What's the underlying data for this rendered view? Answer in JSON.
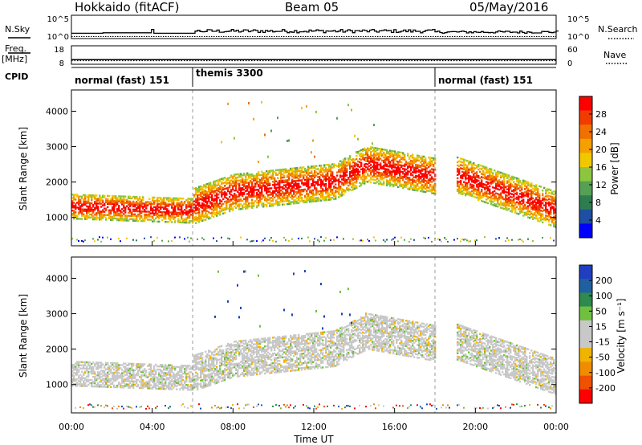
{
  "header": {
    "station": "Hokkaido (fitACF)",
    "beam": "Beam 05",
    "date": "05/May/2016"
  },
  "left_labels": {
    "nsky": "N.Sky",
    "freq": "Freq.",
    "freq_unit": "[MHz]",
    "cpid": "CPID"
  },
  "right_labels": {
    "nsearch": "N.Search",
    "nave": "Nave"
  },
  "cpid_segments": [
    {
      "label": "normal (fast) 151",
      "start_h": 0,
      "end_h": 6
    },
    {
      "label": "themis 3300",
      "start_h": 6,
      "end_h": 18
    },
    {
      "label": "normal (fast) 151",
      "start_h": 18,
      "end_h": 24
    }
  ],
  "colors": {
    "power_scale": [
      "#0000ff",
      "#1f4fa0",
      "#2e7d4f",
      "#55a055",
      "#8cc63f",
      "#f0c800",
      "#f5a000",
      "#f07000",
      "#f03c00",
      "#ff0000"
    ],
    "velocity_scale": [
      "#1f3fc0",
      "#2060a0",
      "#2e8a4e",
      "#70c040",
      "#c8c8c8",
      "#c8c8c8",
      "#f0b400",
      "#f08c00",
      "#f05000",
      "#ff0000"
    ],
    "gray": "#c8c8c8"
  },
  "chart_data": [
    {
      "type": "line",
      "name": "noise-panel",
      "y_left_ticks": [
        "10^5",
        "10^0"
      ],
      "y_right_ticks": [
        "10^5",
        "10^0"
      ],
      "x_range_h": [
        0,
        24
      ]
    },
    {
      "type": "line",
      "name": "frequency-panel",
      "y_left_ticks": [
        "18",
        "8"
      ],
      "y_right_ticks": [
        "60",
        "0"
      ],
      "frequency_mhz": 10.5,
      "nave": 12
    },
    {
      "type": "heatmap",
      "name": "power-panel",
      "xlabel": "",
      "ylabel": "Slant Range [km]",
      "xlim_h": [
        0,
        24
      ],
      "ylim_km": [
        200,
        4600
      ],
      "yticks": [
        1000,
        2000,
        3000,
        4000
      ],
      "colorbar_label": "Power [dB]",
      "colorbar_ticks": [
        "4",
        "8",
        "12",
        "16",
        "20",
        "24",
        "28"
      ],
      "colorbar_range": [
        0,
        32
      ]
    },
    {
      "type": "heatmap",
      "name": "velocity-panel",
      "xlabel": "Time UT",
      "ylabel": "Slant Range [km]",
      "xlim_h": [
        0,
        24
      ],
      "ylim_km": [
        200,
        4600
      ],
      "yticks": [
        1000,
        2000,
        3000,
        4000
      ],
      "xticks": [
        "00:00",
        "04:00",
        "08:00",
        "12:00",
        "16:00",
        "20:00",
        "00:00"
      ],
      "colorbar_label": "Velocity [m s⁻¹]",
      "colorbar_ticks": [
        "200",
        "100",
        "50",
        "15",
        "-15",
        "-50",
        "-100",
        "-200"
      ]
    }
  ]
}
